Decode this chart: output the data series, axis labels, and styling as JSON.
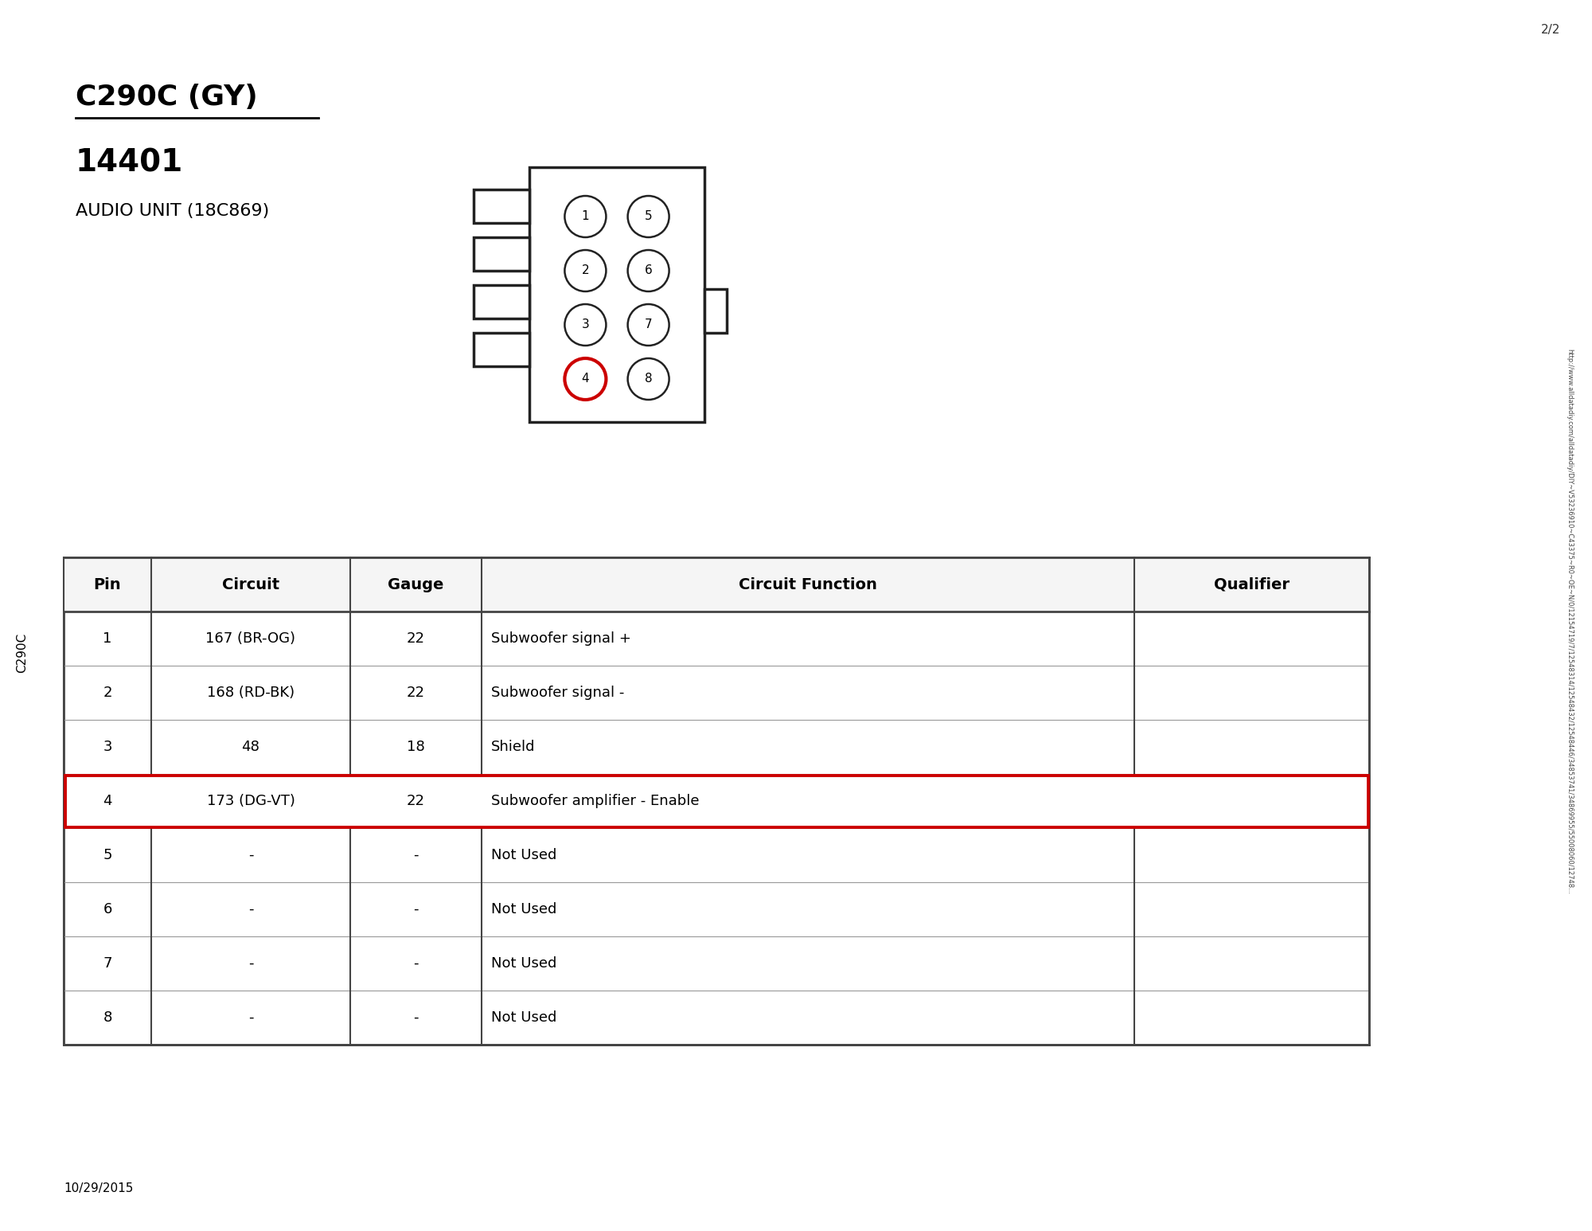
{
  "title1": "C290C (GY)",
  "title2": "14401",
  "subtitle": "AUDIO UNIT (18C869)",
  "page_num": "2/2",
  "date": "10/29/2015",
  "side_label": "C290C",
  "url_text": "http://www.alldatadiy.com/alldatadiy/DIY~V53236910~C43375~R0~OE~N/0/12154719/7/12548314/12548432/12548446/34853741/34869955/55008060/12748...",
  "table_headers": [
    "Pin",
    "Circuit",
    "Gauge",
    "Circuit Function",
    "Qualifier"
  ],
  "table_rows": [
    [
      "1",
      "167 (BR-OG)",
      "22",
      "Subwoofer signal +",
      ""
    ],
    [
      "2",
      "168 (RD-BK)",
      "22",
      "Subwoofer signal -",
      ""
    ],
    [
      "3",
      "48",
      "18",
      "Shield",
      ""
    ],
    [
      "4",
      "173 (DG-VT)",
      "22",
      "Subwoofer amplifier - Enable",
      ""
    ],
    [
      "5",
      "-",
      "-",
      "Not Used",
      ""
    ],
    [
      "6",
      "-",
      "-",
      "Not Used",
      ""
    ],
    [
      "7",
      "-",
      "-",
      "Not Used",
      ""
    ],
    [
      "8",
      "-",
      "-",
      "Not Used",
      ""
    ]
  ],
  "highlight_row": 3,
  "bg_color": "#ffffff",
  "text_color": "#000000",
  "table_border_color": "#444444",
  "highlight_border_color": "#cc0000",
  "connector_box_color": "#222222"
}
